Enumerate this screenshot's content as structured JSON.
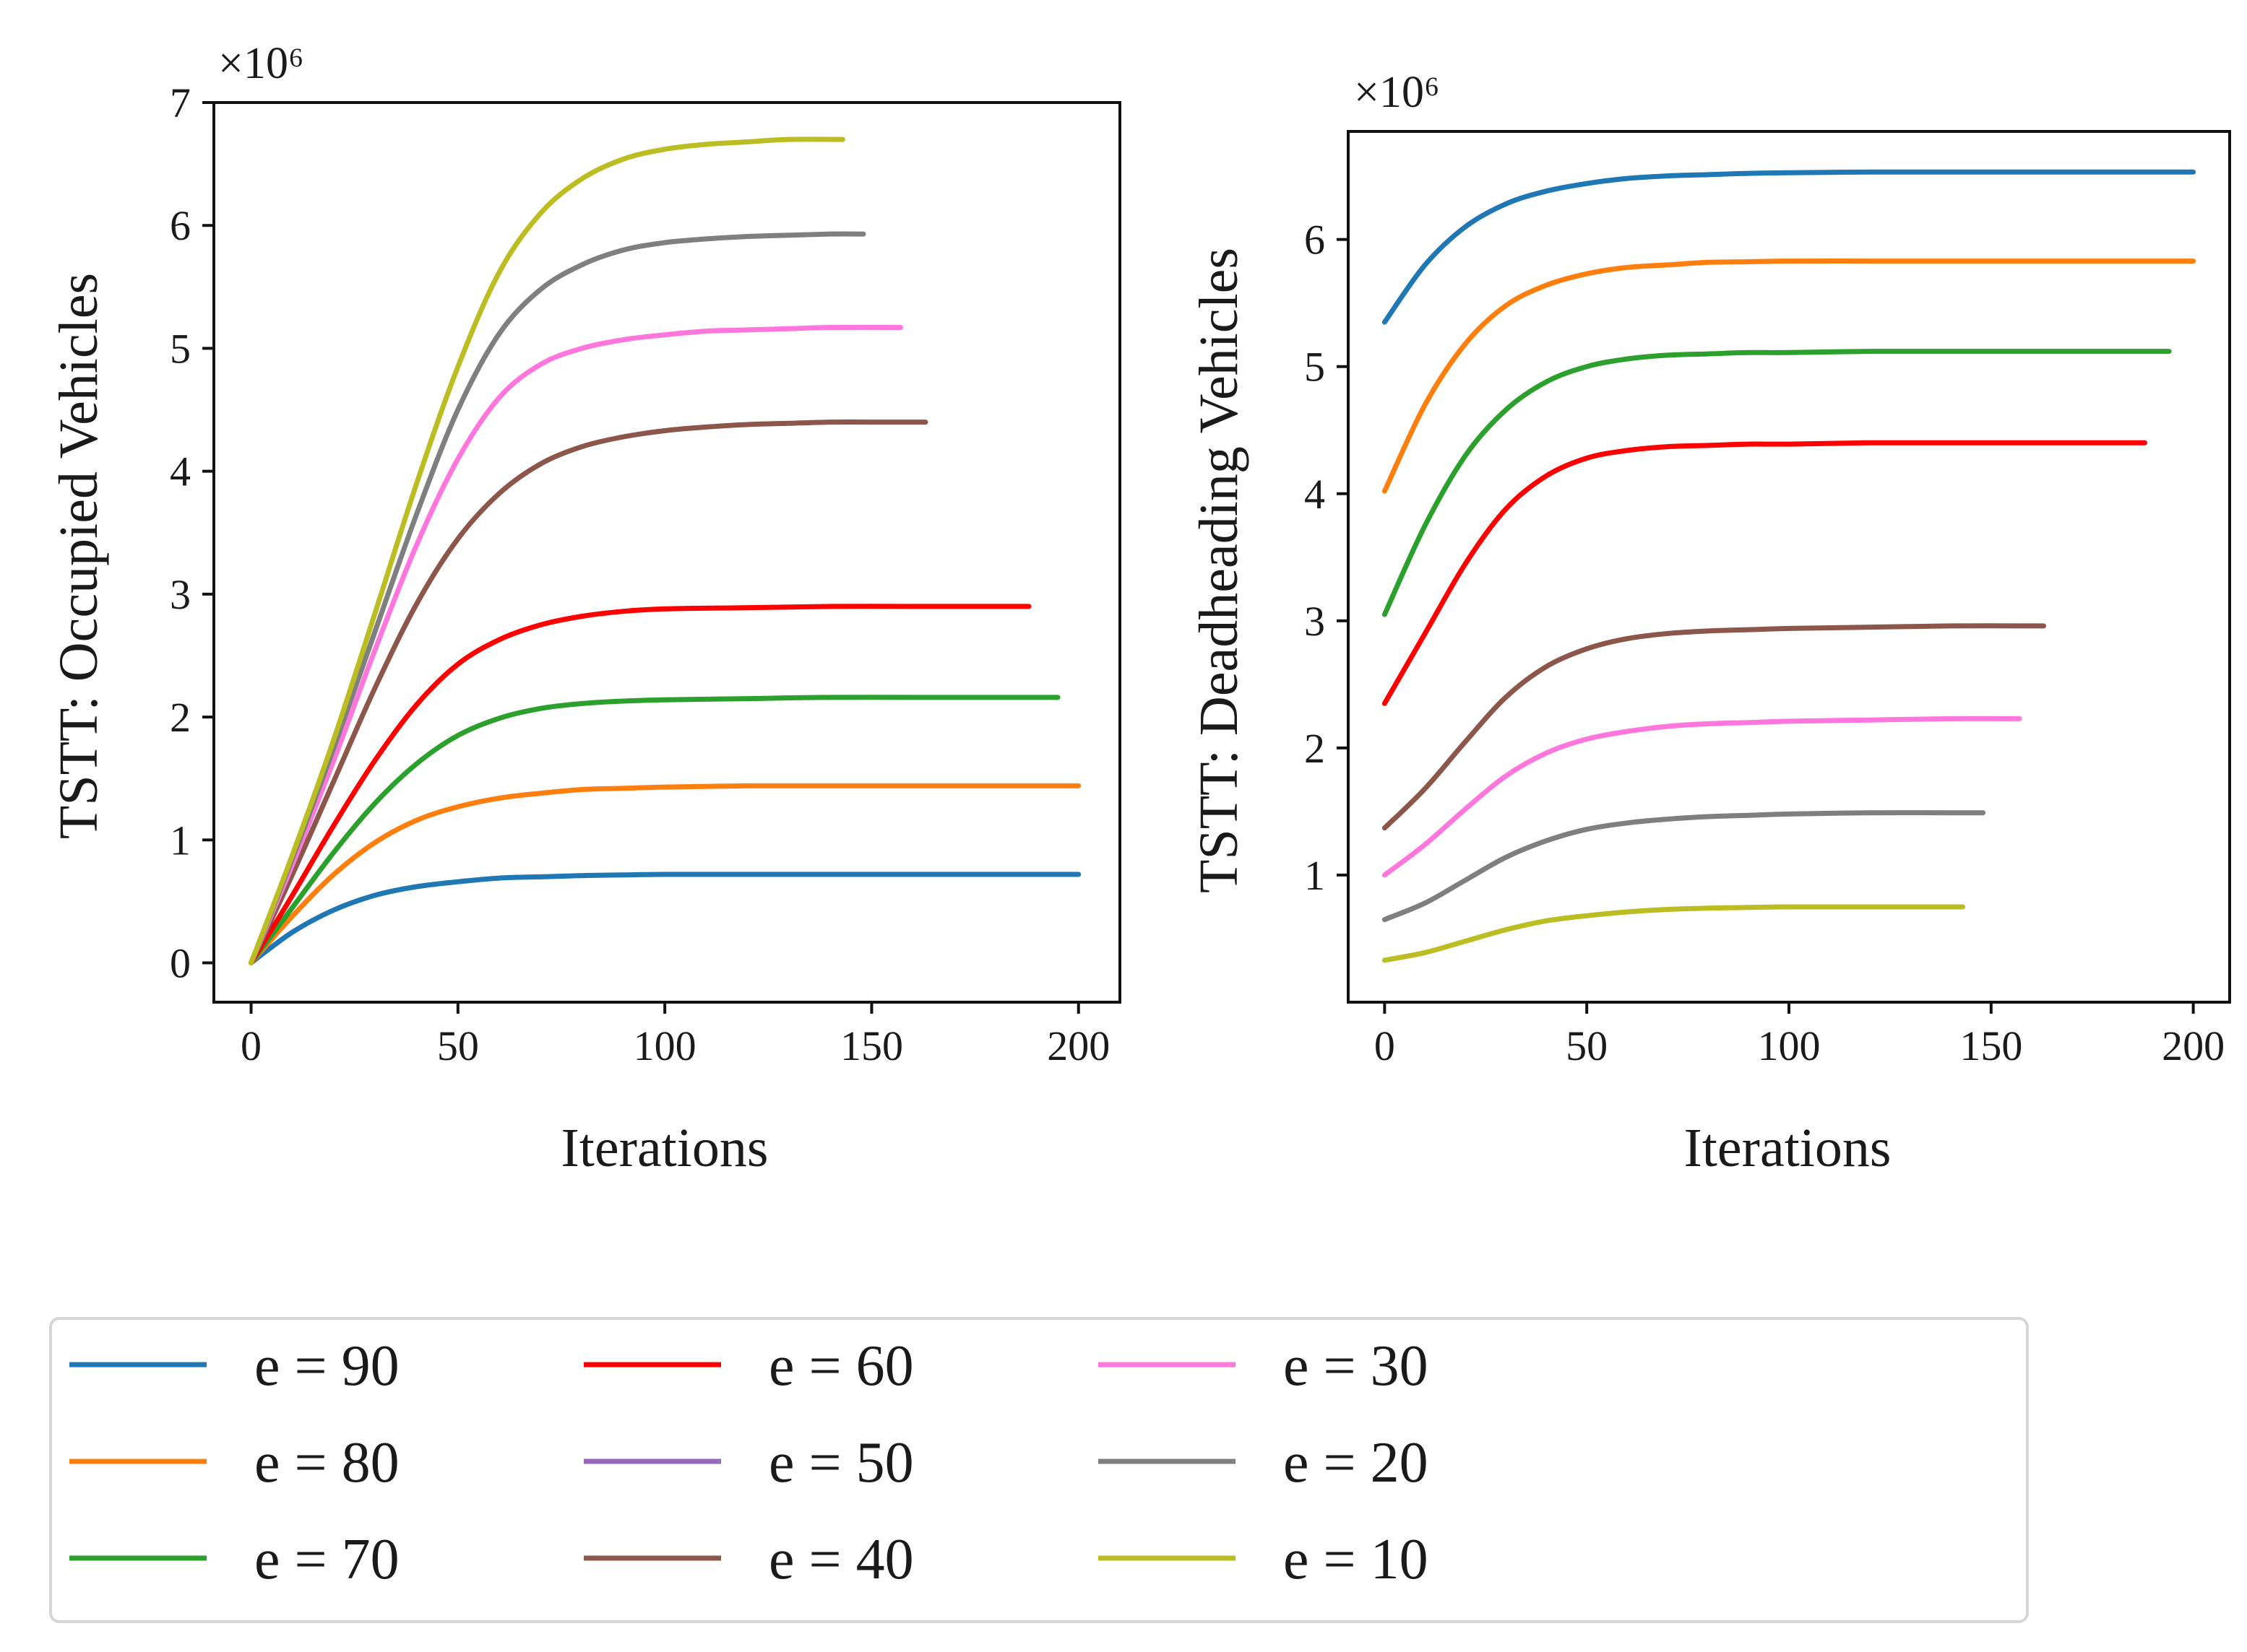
{
  "chart_data": [
    {
      "type": "line",
      "title": "",
      "xlabel": "Iterations",
      "ylabel": "TSTT: Occupied Vehicles",
      "offset_text": "×10⁶",
      "xlim": [
        -9,
        210
      ],
      "ylim": [
        -0.32,
        7.0
      ],
      "xticks": [
        0,
        50,
        100,
        150,
        200
      ],
      "yticks": [
        0,
        1,
        2,
        3,
        4,
        5,
        6,
        7
      ],
      "series": [
        {
          "name": "e = 90",
          "color": "#1f77b4",
          "x": [
            0,
            10,
            20,
            30,
            40,
            50,
            60,
            70,
            80,
            90,
            100,
            120,
            140,
            160,
            180,
            200
          ],
          "values": [
            0,
            0.25,
            0.43,
            0.55,
            0.62,
            0.66,
            0.69,
            0.7,
            0.71,
            0.715,
            0.72,
            0.72,
            0.72,
            0.72,
            0.72,
            0.72
          ]
        },
        {
          "name": "e = 80",
          "color": "#ff7f0e",
          "x": [
            0,
            10,
            20,
            30,
            40,
            50,
            60,
            70,
            80,
            90,
            100,
            120,
            140,
            160,
            180,
            200
          ],
          "values": [
            0,
            0.38,
            0.72,
            0.98,
            1.16,
            1.27,
            1.34,
            1.38,
            1.41,
            1.42,
            1.43,
            1.44,
            1.44,
            1.44,
            1.44,
            1.44
          ]
        },
        {
          "name": "e = 70",
          "color": "#2ca02c",
          "x": [
            0,
            10,
            20,
            30,
            40,
            50,
            60,
            70,
            80,
            90,
            100,
            120,
            140,
            160,
            180,
            195
          ],
          "values": [
            0,
            0.45,
            0.9,
            1.3,
            1.62,
            1.85,
            1.99,
            2.07,
            2.11,
            2.13,
            2.14,
            2.15,
            2.16,
            2.16,
            2.16,
            2.16
          ]
        },
        {
          "name": "e = 60",
          "color": "#ff0000",
          "x": [
            0,
            10,
            20,
            30,
            40,
            50,
            60,
            70,
            80,
            90,
            100,
            120,
            140,
            160,
            180,
            188
          ],
          "values": [
            0,
            0.55,
            1.12,
            1.65,
            2.1,
            2.43,
            2.63,
            2.75,
            2.82,
            2.86,
            2.88,
            2.89,
            2.9,
            2.9,
            2.9,
            2.9
          ]
        },
        {
          "name": "e = 50",
          "color": "#9467bd",
          "x": [],
          "values": []
        },
        {
          "name": "e = 40",
          "color": "#8c564b",
          "x": [
            0,
            10,
            20,
            30,
            40,
            50,
            60,
            70,
            80,
            90,
            100,
            110,
            120,
            130,
            140,
            150,
            163
          ],
          "values": [
            0,
            0.72,
            1.48,
            2.24,
            2.92,
            3.45,
            3.82,
            4.06,
            4.2,
            4.28,
            4.33,
            4.36,
            4.38,
            4.39,
            4.4,
            4.4,
            4.4
          ]
        },
        {
          "name": "e = 30",
          "color": "#ff77dd",
          "x": [
            0,
            10,
            20,
            30,
            40,
            50,
            60,
            70,
            80,
            90,
            100,
            110,
            120,
            130,
            140,
            157
          ],
          "values": [
            0,
            0.8,
            1.65,
            2.55,
            3.4,
            4.1,
            4.6,
            4.87,
            5.0,
            5.07,
            5.11,
            5.14,
            5.15,
            5.16,
            5.17,
            5.17
          ]
        },
        {
          "name": "e = 20",
          "color": "#7f7f7f",
          "x": [
            0,
            10,
            20,
            30,
            40,
            50,
            60,
            70,
            80,
            90,
            100,
            110,
            120,
            130,
            140,
            148
          ],
          "values": [
            0,
            0.85,
            1.75,
            2.7,
            3.65,
            4.5,
            5.12,
            5.48,
            5.68,
            5.8,
            5.86,
            5.89,
            5.91,
            5.92,
            5.93,
            5.93
          ]
        },
        {
          "name": "e = 10",
          "color": "#bcbd22",
          "x": [
            0,
            10,
            20,
            30,
            40,
            50,
            60,
            70,
            80,
            90,
            100,
            110,
            120,
            130,
            143
          ],
          "values": [
            0,
            0.88,
            1.82,
            2.85,
            3.9,
            4.85,
            5.62,
            6.1,
            6.38,
            6.54,
            6.62,
            6.66,
            6.68,
            6.7,
            6.7
          ]
        }
      ]
    },
    {
      "type": "line",
      "title": "",
      "xlabel": "Iterations",
      "ylabel": "TSTT: Deadheading Vehicles",
      "offset_text": "×10⁶",
      "xlim": [
        -9,
        209
      ],
      "ylim": [
        0.0,
        6.85
      ],
      "xticks": [
        0,
        50,
        100,
        150,
        200
      ],
      "yticks": [
        1,
        2,
        3,
        4,
        5,
        6
      ],
      "series": [
        {
          "name": "e = 90",
          "color": "#1f77b4",
          "x": [
            0,
            10,
            20,
            30,
            40,
            50,
            60,
            70,
            80,
            90,
            100,
            120,
            140,
            160,
            180,
            200
          ],
          "values": [
            5.35,
            5.8,
            6.1,
            6.28,
            6.38,
            6.44,
            6.48,
            6.5,
            6.51,
            6.52,
            6.525,
            6.53,
            6.53,
            6.53,
            6.53,
            6.53
          ]
        },
        {
          "name": "e = 80",
          "color": "#ff7f0e",
          "x": [
            0,
            10,
            20,
            30,
            40,
            50,
            60,
            70,
            80,
            90,
            100,
            120,
            140,
            160,
            180,
            200
          ],
          "values": [
            4.02,
            4.7,
            5.18,
            5.48,
            5.64,
            5.73,
            5.78,
            5.8,
            5.82,
            5.825,
            5.83,
            5.83,
            5.83,
            5.83,
            5.83,
            5.83
          ]
        },
        {
          "name": "e = 70",
          "color": "#2ca02c",
          "x": [
            0,
            10,
            20,
            30,
            40,
            50,
            60,
            70,
            80,
            90,
            100,
            120,
            140,
            160,
            180,
            194
          ],
          "values": [
            3.05,
            3.75,
            4.3,
            4.66,
            4.88,
            5.0,
            5.06,
            5.09,
            5.1,
            5.11,
            5.11,
            5.12,
            5.12,
            5.12,
            5.12,
            5.12
          ]
        },
        {
          "name": "e = 60",
          "color": "#ff0000",
          "x": [
            0,
            10,
            20,
            30,
            40,
            50,
            60,
            70,
            80,
            90,
            100,
            120,
            140,
            160,
            180,
            188
          ],
          "values": [
            2.35,
            2.9,
            3.45,
            3.88,
            4.14,
            4.28,
            4.34,
            4.37,
            4.38,
            4.39,
            4.39,
            4.4,
            4.4,
            4.4,
            4.4,
            4.4
          ]
        },
        {
          "name": "e = 50",
          "color": "#9467bd",
          "x": [],
          "values": []
        },
        {
          "name": "e = 40",
          "color": "#8c564b",
          "x": [
            0,
            10,
            20,
            30,
            40,
            50,
            60,
            70,
            80,
            90,
            100,
            120,
            140,
            163
          ],
          "values": [
            1.37,
            1.68,
            2.05,
            2.4,
            2.64,
            2.78,
            2.86,
            2.9,
            2.92,
            2.93,
            2.94,
            2.95,
            2.96,
            2.96
          ]
        },
        {
          "name": "e = 30",
          "color": "#ff77dd",
          "x": [
            0,
            10,
            20,
            30,
            40,
            50,
            60,
            70,
            80,
            90,
            100,
            120,
            140,
            157
          ],
          "values": [
            1.0,
            1.24,
            1.52,
            1.78,
            1.96,
            2.07,
            2.13,
            2.17,
            2.19,
            2.2,
            2.21,
            2.22,
            2.23,
            2.23
          ]
        },
        {
          "name": "e = 20",
          "color": "#7f7f7f",
          "x": [
            0,
            10,
            20,
            30,
            40,
            50,
            60,
            70,
            80,
            90,
            100,
            120,
            140,
            148
          ],
          "values": [
            0.65,
            0.78,
            0.96,
            1.14,
            1.27,
            1.36,
            1.41,
            1.44,
            1.46,
            1.47,
            1.48,
            1.49,
            1.49,
            1.49
          ]
        },
        {
          "name": "e = 10",
          "color": "#bcbd22",
          "x": [
            0,
            10,
            20,
            30,
            40,
            50,
            60,
            70,
            80,
            90,
            100,
            120,
            143
          ],
          "values": [
            0.33,
            0.39,
            0.48,
            0.57,
            0.64,
            0.68,
            0.71,
            0.73,
            0.74,
            0.745,
            0.75,
            0.75,
            0.75
          ]
        }
      ]
    }
  ]
}
